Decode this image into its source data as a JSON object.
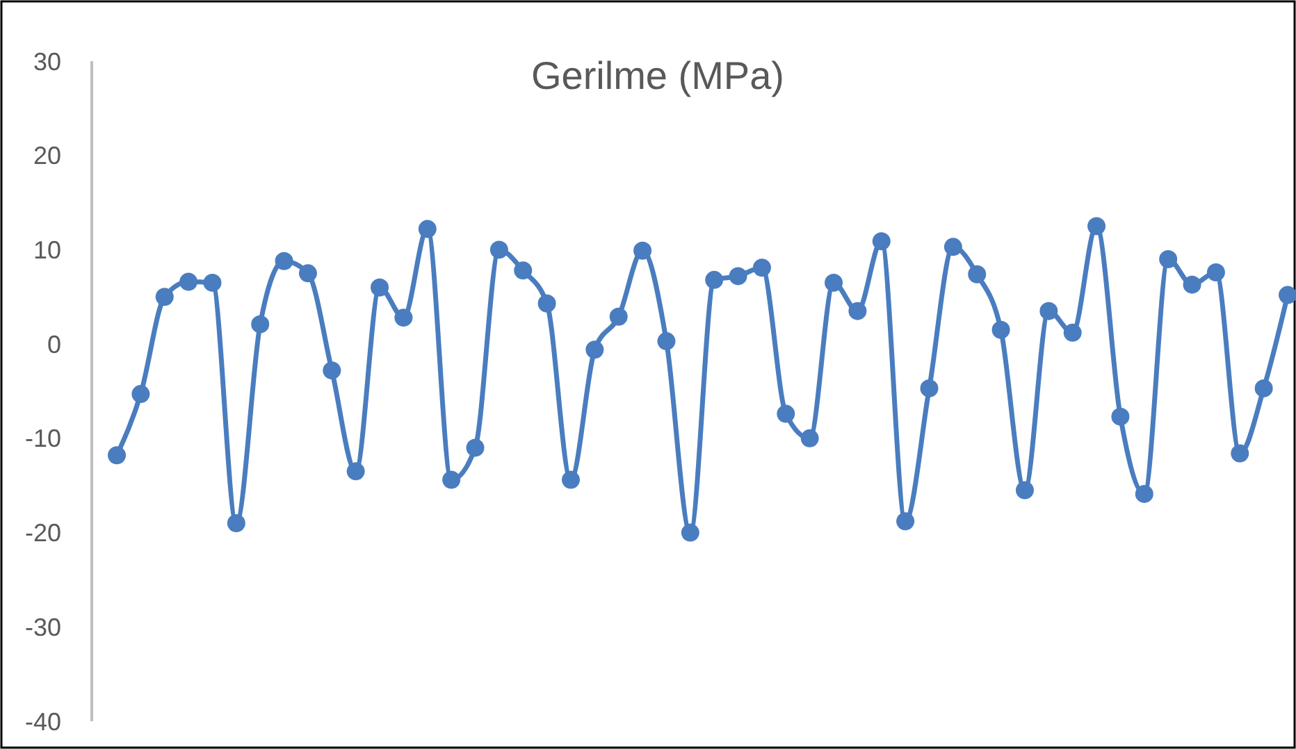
{
  "chart_data": {
    "type": "line",
    "title": "Gerilme (MPa)",
    "categories": [
      null,
      null,
      null,
      null,
      null,
      null,
      null,
      null,
      null,
      null,
      null,
      null,
      null,
      null,
      null,
      null,
      null,
      null,
      null,
      null,
      null,
      null,
      null,
      null,
      null,
      null,
      null,
      null,
      null,
      null,
      null,
      null,
      null,
      null,
      null,
      null,
      null,
      null,
      null,
      null,
      null,
      null,
      null,
      null,
      null,
      null,
      null,
      null,
      null,
      null
    ],
    "series": [
      {
        "color": "#4a7dbf",
        "values": [
          -11.8,
          -5.3,
          5,
          6.6,
          6.5,
          -19,
          2.1,
          8.8,
          7.5,
          -2.8,
          -13.5,
          6,
          2.8,
          12.2,
          -14.4,
          -11,
          10,
          7.8,
          4.3,
          -14.4,
          -0.6,
          2.9,
          9.9,
          0.3,
          -20,
          6.8,
          7.2,
          8.1,
          -7.4,
          -10,
          6.5,
          3.5,
          10.9,
          -18.8,
          -4.7,
          10.3,
          7.4,
          1.5,
          -15.5,
          3.5,
          1.2,
          12.5,
          -7.7,
          -15.9,
          9,
          6.3,
          7.6,
          -11.6,
          -4.7,
          5.2
        ]
      }
    ],
    "ylim": [
      -40,
      30
    ],
    "yticks": [
      -40,
      -30,
      -20,
      -10,
      0,
      10,
      20,
      30
    ],
    "tick_labels": "y",
    "grid": false,
    "marker": "circle",
    "line_style": "solid"
  }
}
